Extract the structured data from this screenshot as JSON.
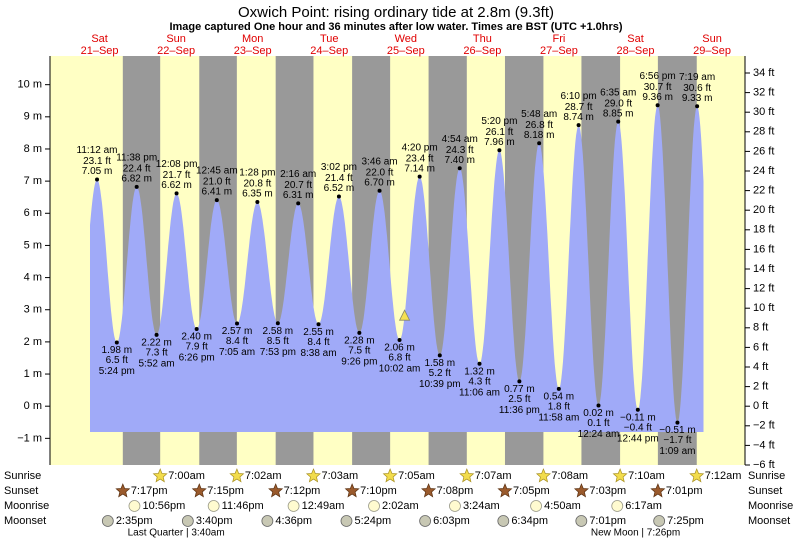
{
  "chart_data": {
    "type": "tide",
    "title": "Oxwich Point: rising  ordinary tide at 2.8m (9.3ft)",
    "subtitle": "Image captured One hour and 36 minutes after low water. Times are BST (UTC +1.0hrs)",
    "current_height": 2.8,
    "days": {
      "dow": [
        "Sat",
        "Sun",
        "Mon",
        "Tue",
        "Wed",
        "Thu",
        "Fri",
        "Sat",
        "Sun"
      ],
      "date": [
        "21–Sep",
        "22–Sep",
        "23–Sep",
        "24–Sep",
        "25–Sep",
        "26–Sep",
        "27–Sep",
        "28–Sep",
        "29–Sep"
      ]
    },
    "tides": {
      "times": [
        "11:12 am",
        "5:24 pm",
        "11:38 pm",
        "5:52 am",
        "12:08 pm",
        "6:26 pm",
        "12:45 am",
        "7:05 am",
        "1:28 pm",
        "7:53 pm",
        "2:16 am",
        "8:38 am",
        "3:02 pm",
        "9:26 pm",
        "3:46 am",
        "10:02 am",
        "4:20 pm",
        "10:39 pm",
        "4:54 am",
        "11:06 am",
        "5:20 pm",
        "11:36 pm",
        "5:48 am",
        "11:58 am",
        "6:10 pm",
        "12:24 am",
        "6:35 am",
        "12:44 pm",
        "6:56 pm",
        "1:09 am",
        "7:19 am"
      ],
      "values": [
        7.05,
        1.98,
        6.82,
        2.22,
        6.62,
        2.4,
        6.41,
        2.57,
        6.35,
        2.58,
        6.31,
        2.55,
        6.52,
        2.28,
        6.7,
        2.06,
        7.14,
        1.58,
        7.4,
        1.32,
        7.96,
        0.77,
        8.18,
        0.54,
        8.74,
        0.02,
        8.85,
        -0.11,
        9.36,
        -0.51,
        9.33
      ],
      "value_labels": [
        "7.05 m",
        "1.98 m",
        "6.82 m",
        "2.22 m",
        "6.62 m",
        "2.40 m",
        "6.41 m",
        "2.57 m",
        "6.35 m",
        "2.58 m",
        "6.31 m",
        "2.55 m",
        "6.52 m",
        "2.28 m",
        "6.70 m",
        "2.06 m",
        "7.14 m",
        "1.58 m",
        "7.40 m",
        "1.32 m",
        "7.96 m",
        "0.77 m",
        "8.18 m",
        "0.54 m",
        "8.74 m",
        "0.02 m",
        "8.85 m",
        "−0.11 m",
        "9.36 m",
        "−0.51 m",
        "9.33 m"
      ],
      "ft_labels": [
        "23.1 ft",
        "6.5 ft",
        "22.4 ft",
        "7.3 ft",
        "21.7 ft",
        "7.9 ft",
        "21.0 ft",
        "8.4 ft",
        "20.8 ft",
        "8.5 ft",
        "20.7 ft",
        "8.4 ft",
        "21.4 ft",
        "7.5 ft",
        "22.0 ft",
        "6.8 ft",
        "23.4 ft",
        "5.2 ft",
        "24.3 ft",
        "4.3 ft",
        "26.1 ft",
        "2.5 ft",
        "26.8 ft",
        "1.8 ft",
        "28.7 ft",
        "0.1 ft",
        "29.0 ft",
        "−0.4 ft",
        "30.7 ft",
        "−1.7 ft",
        "30.6 ft"
      ],
      "color": "#a0aaf8"
    },
    "events": {
      "names": [
        "Sunrise",
        "Sunset",
        "Moonrise",
        "Moonset"
      ],
      "sunrise": [
        null,
        "7:00am",
        "7:02am",
        "7:03am",
        "7:05am",
        "7:07am",
        "7:08am",
        "7:10am",
        "7:12am"
      ],
      "sunset": [
        "7:17pm",
        "7:15pm",
        "7:12pm",
        "7:10pm",
        "7:08pm",
        "7:05pm",
        "7:03pm",
        "7:01pm",
        null
      ],
      "moonrise": [
        "10:56pm",
        "11:46pm",
        null,
        "12:49am",
        "2:02am",
        "3:24am",
        "4:50am",
        "6:17am",
        null
      ],
      "moonset": [
        "2:35pm",
        "3:40pm",
        "4:36pm",
        "5:24pm",
        "6:03pm",
        "6:34pm",
        "7:01pm",
        "7:25pm",
        null
      ],
      "moon_phase": [
        null,
        "Last Quarter | 3:40am",
        null,
        null,
        null,
        null,
        null,
        "New Moon | 7:26pm",
        null
      ]
    },
    "ylim": [
      -1.829,
      10.363
    ],
    "yticks": [
      {
        "value": -1,
        "label": "−1 m"
      },
      {
        "value": 0,
        "label": "0 m"
      },
      {
        "value": 1,
        "label": "1 m"
      },
      {
        "value": 2,
        "label": "2 m"
      },
      {
        "value": 3,
        "label": "3 m"
      },
      {
        "value": 4,
        "label": "4 m"
      },
      {
        "value": 5,
        "label": "5 m"
      },
      {
        "value": 6,
        "label": "6 m"
      },
      {
        "value": 7,
        "label": "7 m"
      },
      {
        "value": 8,
        "label": "8 m"
      },
      {
        "value": 9,
        "label": "9 m"
      },
      {
        "value": 10,
        "label": "10 m"
      }
    ],
    "y2lim": [
      -6,
      34
    ],
    "y2ticks": [
      {
        "value": -6,
        "label": "−6 ft"
      },
      {
        "value": -4,
        "label": "−4 ft"
      },
      {
        "value": -2,
        "label": "−2 ft"
      },
      {
        "value": 0,
        "label": "0 ft"
      },
      {
        "value": 2,
        "label": "2 ft"
      },
      {
        "value": 4,
        "label": "4 ft"
      },
      {
        "value": 6,
        "label": "6 ft"
      },
      {
        "value": 8,
        "label": "8 ft"
      },
      {
        "value": 10,
        "label": "10 ft"
      },
      {
        "value": 12,
        "label": "12 ft"
      },
      {
        "value": 14,
        "label": "14 ft"
      },
      {
        "value": 16,
        "label": "16 ft"
      },
      {
        "value": 18,
        "label": "18 ft"
      },
      {
        "value": 20,
        "label": "20 ft"
      },
      {
        "value": 22,
        "label": "22 ft"
      },
      {
        "value": 24,
        "label": "24 ft"
      },
      {
        "value": 26,
        "label": "26 ft"
      },
      {
        "value": 28,
        "label": "28 ft"
      },
      {
        "value": 30,
        "label": "30 ft"
      },
      {
        "value": 32,
        "label": "32 ft"
      },
      {
        "value": 34,
        "label": "34 ft"
      }
    ]
  }
}
